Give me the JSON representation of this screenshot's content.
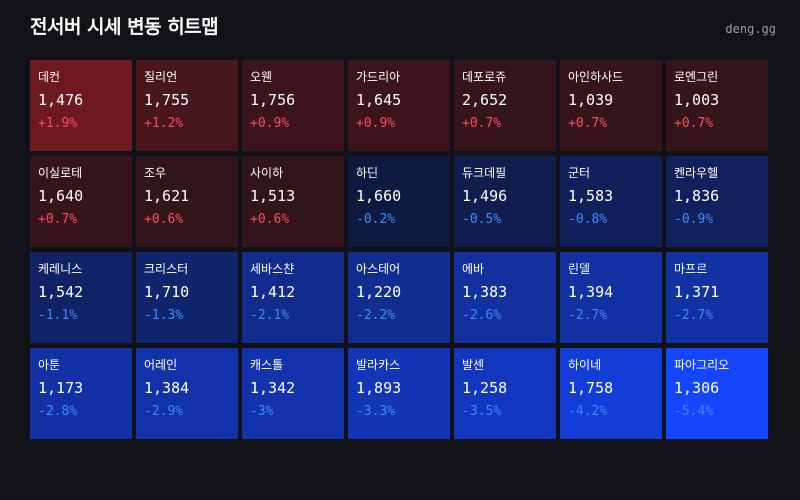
{
  "header": {
    "title": "전서버 시세 변동 히트맵",
    "watermark": "deng.gg"
  },
  "colors": {
    "background": "#111217",
    "up_text": "#ff4b5e",
    "down_text": "#3d8bff",
    "up_strong": "#6e1820",
    "up_weak": "#26141a",
    "down_weak": "#0f1836",
    "down_strong": "#1446ff"
  },
  "chart_data": {
    "type": "heatmap",
    "title": "전서버 시세 변동 히트맵",
    "columns": 7,
    "cells": [
      {
        "name": "데컨",
        "price": "1,476",
        "change": "+1.9%",
        "value": 1.9
      },
      {
        "name": "질리언",
        "price": "1,755",
        "change": "+1.2%",
        "value": 1.2
      },
      {
        "name": "오웬",
        "price": "1,756",
        "change": "+0.9%",
        "value": 0.9
      },
      {
        "name": "가드리아",
        "price": "1,645",
        "change": "+0.9%",
        "value": 0.9
      },
      {
        "name": "데포로쥬",
        "price": "2,652",
        "change": "+0.7%",
        "value": 0.7
      },
      {
        "name": "아인하사드",
        "price": "1,039",
        "change": "+0.7%",
        "value": 0.7
      },
      {
        "name": "로엔그린",
        "price": "1,003",
        "change": "+0.7%",
        "value": 0.7
      },
      {
        "name": "이실로테",
        "price": "1,640",
        "change": "+0.7%",
        "value": 0.7
      },
      {
        "name": "조우",
        "price": "1,621",
        "change": "+0.6%",
        "value": 0.6
      },
      {
        "name": "사이하",
        "price": "1,513",
        "change": "+0.6%",
        "value": 0.6
      },
      {
        "name": "하딘",
        "price": "1,660",
        "change": "-0.2%",
        "value": -0.2
      },
      {
        "name": "듀크데필",
        "price": "1,496",
        "change": "-0.5%",
        "value": -0.5
      },
      {
        "name": "군터",
        "price": "1,583",
        "change": "-0.8%",
        "value": -0.8
      },
      {
        "name": "켄라우헬",
        "price": "1,836",
        "change": "-0.9%",
        "value": -0.9
      },
      {
        "name": "케레니스",
        "price": "1,542",
        "change": "-1.1%",
        "value": -1.1
      },
      {
        "name": "크리스터",
        "price": "1,710",
        "change": "-1.3%",
        "value": -1.3
      },
      {
        "name": "세바스챤",
        "price": "1,412",
        "change": "-2.1%",
        "value": -2.1
      },
      {
        "name": "아스테어",
        "price": "1,220",
        "change": "-2.2%",
        "value": -2.2
      },
      {
        "name": "에바",
        "price": "1,383",
        "change": "-2.6%",
        "value": -2.6
      },
      {
        "name": "린델",
        "price": "1,394",
        "change": "-2.7%",
        "value": -2.7
      },
      {
        "name": "마프르",
        "price": "1,371",
        "change": "-2.7%",
        "value": -2.7
      },
      {
        "name": "아툰",
        "price": "1,173",
        "change": "-2.8%",
        "value": -2.8
      },
      {
        "name": "어레인",
        "price": "1,384",
        "change": "-2.9%",
        "value": -2.9
      },
      {
        "name": "캐스톨",
        "price": "1,342",
        "change": "-3%",
        "value": -3.0
      },
      {
        "name": "발라카스",
        "price": "1,893",
        "change": "-3.3%",
        "value": -3.3
      },
      {
        "name": "발센",
        "price": "1,258",
        "change": "-3.5%",
        "value": -3.5
      },
      {
        "name": "하이네",
        "price": "1,758",
        "change": "-4.2%",
        "value": -4.2
      },
      {
        "name": "파아그리오",
        "price": "1,306",
        "change": "-5.4%",
        "value": -5.4
      }
    ]
  }
}
